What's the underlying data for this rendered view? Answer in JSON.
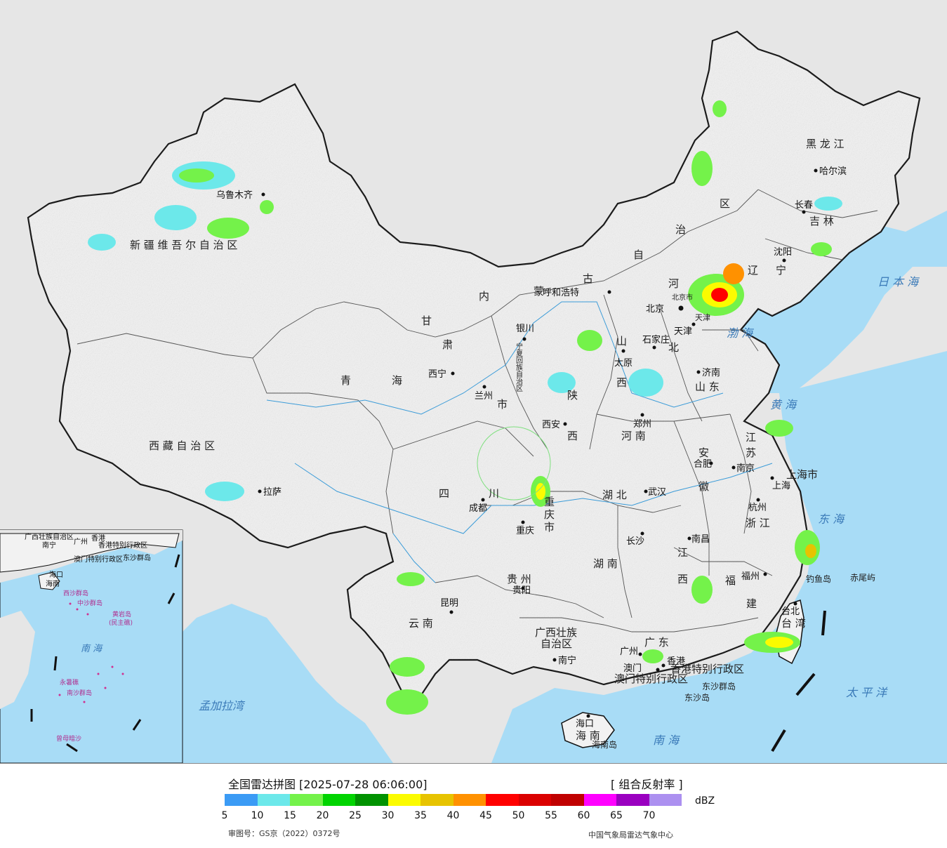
{
  "legend": {
    "title": "全国雷达拼图 [2025-07-28 06:06:00]",
    "product": "[ 组合反射率 ]",
    "unit": "dBZ",
    "colors": [
      "#3b9bf5",
      "#6ce8ea",
      "#74f24a",
      "#00d400",
      "#009200",
      "#fbfb00",
      "#e7c300",
      "#ff9100",
      "#ff0000",
      "#db0000",
      "#c00000",
      "#ff00ff",
      "#9a00c0",
      "#ac90f0"
    ],
    "ticks": [
      "5",
      "10",
      "15",
      "20",
      "25",
      "30",
      "35",
      "40",
      "45",
      "50",
      "55",
      "60",
      "65",
      "70"
    ],
    "credit_left": "审图号：GS京（2022）0372号",
    "credit_right": "中国气象局雷达气象中心"
  },
  "map": {
    "provinces": {
      "xinjiang": "新 疆 维 吾 尔 自 治 区",
      "xizang": "西 藏 自 治 区",
      "qinghai_1": "青",
      "qinghai_2": "海",
      "gansu_1": "甘",
      "gansu_2": "肃",
      "neimenggu_1": "内",
      "neimenggu_2": "蒙",
      "neimenggu_3": "古",
      "neimenggu_4": "自",
      "neimenggu_5": "治",
      "neimenggu_6": "区",
      "heilongjiang": "黑 龙 江",
      "jilin": "吉 林",
      "liaoning_1": "辽",
      "liaoning_2": "宁",
      "hebei_1": "河",
      "hebei_2": "北",
      "shanxi_1": "山",
      "shanxi_2": "西",
      "shandong": "山 东",
      "henan": "河 南",
      "shaanxi_1": "陕",
      "shaanxi_2": "西",
      "ningxia": "宁夏回族自治区",
      "sichuan_1": "四",
      "sichuan_2": "川",
      "chongqing_shi_1": "重",
      "chongqing_shi_2": "庆",
      "chongqing_shi_3": "市",
      "hubei": "湖 北",
      "hunan": "湖 南",
      "anhui_1": "安",
      "anhui_2": "徽",
      "jiangsu_1": "江",
      "jiangsu_2": "苏",
      "zhejiang": "浙 江",
      "jiangxi_1": "江",
      "jiangxi_2": "西",
      "fujian_1": "福",
      "fujian_2": "建",
      "guizhou": "贵 州",
      "yunnan": "云 南",
      "guangxi_1": "广西壮族",
      "guangxi_2": "自治区",
      "guangdong": "广 东",
      "hainan": "海 南",
      "taiwan": "台 湾",
      "shanghai_shi": "上海市",
      "tianjin_shi": "天津",
      "beijing_shi": "北京市",
      "hongkong_sar": "香港特别行政区",
      "macao_sar": "澳门特别行政区",
      "gansu_shi": "市"
    },
    "cities": {
      "urumqi": "乌鲁木齐",
      "lhasa": "拉萨",
      "xining": "西宁",
      "lanzhou": "兰州",
      "yinchuan": "银川",
      "hohhot": "呼和浩特",
      "beijing": "北京",
      "tianjin": "天津",
      "shijiazhuang": "石家庄",
      "taiyuan": "太原",
      "jinan": "济南",
      "zhengzhou": "郑州",
      "xian": "西安",
      "chengdu": "成都",
      "chongqing": "重庆",
      "wuhan": "武汉",
      "hefei": "合肥",
      "nanjing": "南京",
      "shanghai": "上海",
      "hangzhou": "杭州",
      "changsha": "长沙",
      "nanchang": "南昌",
      "fuzhou": "福州",
      "guiyang": "贵阳",
      "kunming": "昆明",
      "nanning": "南宁",
      "guangzhou": "广州",
      "hongkong": "香港",
      "macao": "澳门",
      "haikou": "海口",
      "taipei": "台北",
      "harbin": "哈尔滨",
      "changchun": "长春",
      "shenyang": "沈阳"
    },
    "islands": {
      "diaoyu": "钓鱼岛",
      "chiwei": "赤尾屿",
      "dongsha_qundao": "东沙群岛",
      "dongsha_dao": "东沙岛",
      "hainan_dao": "海南岛"
    },
    "seas": {
      "bohai": "渤 海",
      "huanghai": "黄 海",
      "donghai": "东 海",
      "nanhai": "南 海",
      "taipingyang": "太 平 洋",
      "ribenhai": "日 本 海",
      "mengjiala": "孟加拉湾"
    },
    "inset": {
      "guangxi": "广西壮族自治区",
      "nanning": "南宁",
      "guangzhou": "广州",
      "hongkong": "香港",
      "hongkong_sar": "香港特别行政区",
      "macao_sar": "澳门特别行政区",
      "dongsha": "东沙群岛",
      "haikou": "海口",
      "hainan": "海南",
      "xisha": "西沙群岛",
      "zhongsha": "中沙群岛",
      "huangyan": "黄岩岛",
      "minzhu": "(民主礁)",
      "nanhai": "南 海",
      "yongshu": "永暑礁",
      "nansha": "南沙群岛",
      "zengmu": "曾母暗沙"
    }
  }
}
